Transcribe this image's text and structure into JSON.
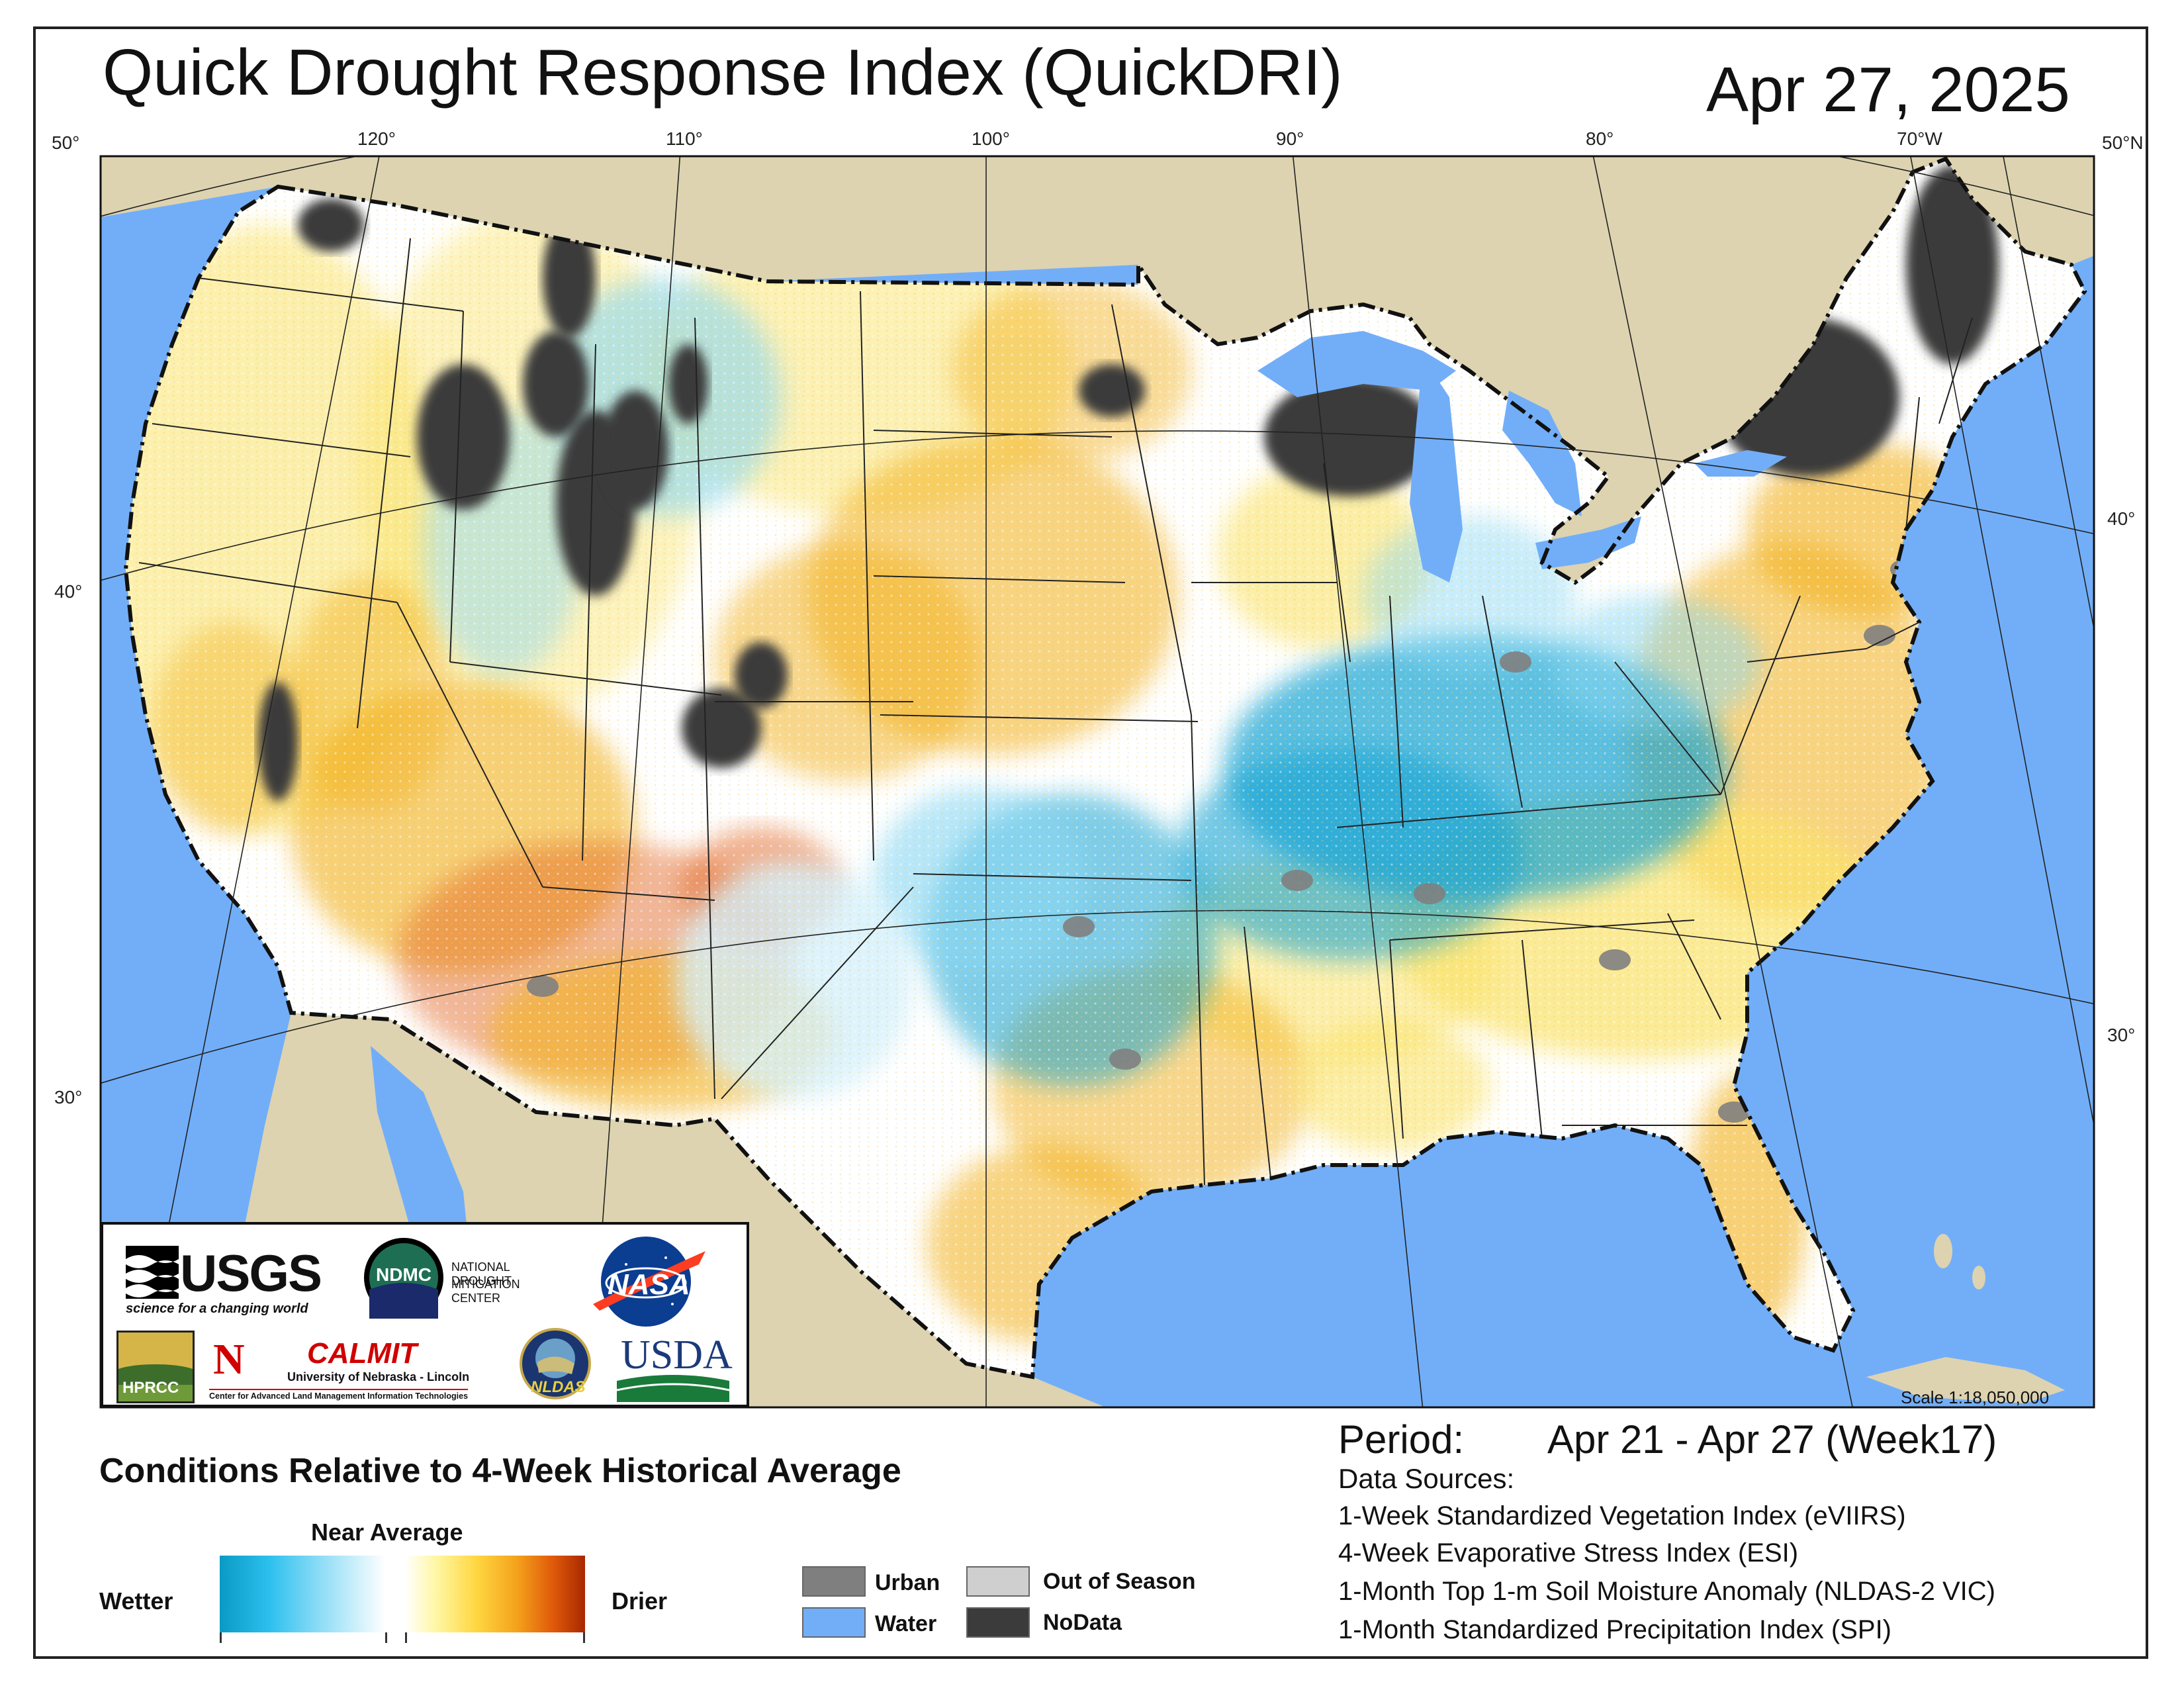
{
  "header": {
    "title": "Quick Drought Response Index (QuickDRI)",
    "date": "Apr 27, 2025"
  },
  "graticule": {
    "top_labels": [
      "50°",
      "120°",
      "110°",
      "100°",
      "90°",
      "80°",
      "70°W",
      "50°N"
    ],
    "left_labels": [
      "40°",
      "30°"
    ],
    "right_labels": [
      "40°",
      "30°"
    ]
  },
  "map": {
    "colors": {
      "land_outside": "#ddd3b0",
      "water": "#72aef8",
      "nodata": "#3b3b3b",
      "urban": "#7f7f7f",
      "out_of_season": "#cfcfcf",
      "wetter": "#12a4d4",
      "near_average": "#ffffff",
      "dry_light": "#fbe36a",
      "dry_mid": "#f3b11e",
      "dry_strong": "#e2601a"
    },
    "scale": "Scale 1:18,050,000"
  },
  "logos": {
    "usgs_name": "USGS",
    "usgs_tagline": "science for a changing world",
    "ndmc_abbr": "NDMC",
    "ndmc_line1": "NATIONAL DROUGHT",
    "ndmc_line2": "MITIGATION CENTER",
    "nasa": "NASA",
    "hprcc": "HPRCC",
    "unl_mark": "N",
    "calmit_name": "CALMIT",
    "calmit_line1": "University of Nebraska - Lincoln",
    "calmit_line2": "Center for Advanced Land Management Information Technologies",
    "nldas": "NLDAS",
    "usda": "USDA"
  },
  "legend": {
    "title": "Conditions Relative to 4-Week Historical Average",
    "near_average": "Near Average",
    "wetter": "Wetter",
    "drier": "Drier",
    "categories": [
      {
        "label": "Urban",
        "color": "#7f7f7f"
      },
      {
        "label": "Water",
        "color": "#72aef8"
      },
      {
        "label": "Out of Season",
        "color": "#cfcfcf"
      },
      {
        "label": "NoData",
        "color": "#3b3b3b"
      }
    ]
  },
  "period": {
    "label": "Period:",
    "value": "Apr 21 - Apr 27 (Week17)"
  },
  "data_sources": {
    "title": "Data Sources:",
    "items": [
      "1-Week Standardized Vegetation Index (eVIIRS)",
      "4-Week Evaporative Stress Index (ESI)",
      "1-Month Top 1-m Soil Moisture Anomaly (NLDAS-2 VIC)",
      "1-Month Standardized Precipitation Index (SPI)"
    ]
  }
}
